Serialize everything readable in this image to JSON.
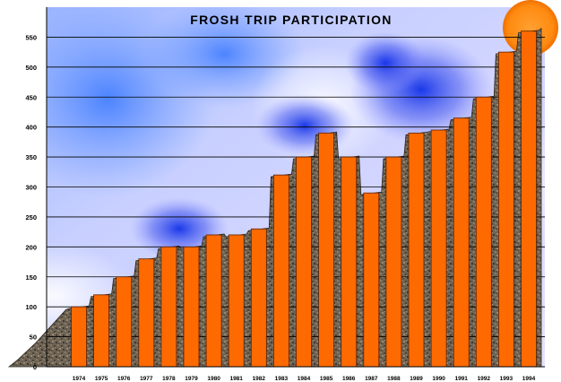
{
  "chart_data": {
    "type": "bar",
    "title": "FROSH TRIP PARTICIPATION",
    "xlabel": "",
    "ylabel": "",
    "categories": [
      "1974",
      "1975",
      "1976",
      "1977",
      "1978",
      "1979",
      "1980",
      "1981",
      "1982",
      "1983",
      "1984",
      "1985",
      "1986",
      "1987",
      "1988",
      "1989",
      "1990",
      "1991",
      "1992",
      "1993",
      "1994"
    ],
    "values": [
      100,
      120,
      150,
      180,
      200,
      200,
      220,
      220,
      230,
      320,
      350,
      390,
      350,
      290,
      350,
      390,
      395,
      415,
      450,
      525,
      560
    ],
    "ylim": [
      0,
      600
    ],
    "yticks": [
      0,
      50,
      100,
      150,
      200,
      250,
      300,
      350,
      400,
      450,
      500,
      550
    ],
    "ytick_labels": [
      "0",
      "50",
      "100",
      "150",
      "200",
      "250",
      "300",
      "350",
      "400",
      "450",
      "500",
      "550"
    ],
    "grid": true,
    "colors": {
      "bar": "#ff6a00",
      "bar_edge": "#5a2000",
      "grid": "#000000",
      "sun": "#ff8c10"
    }
  }
}
